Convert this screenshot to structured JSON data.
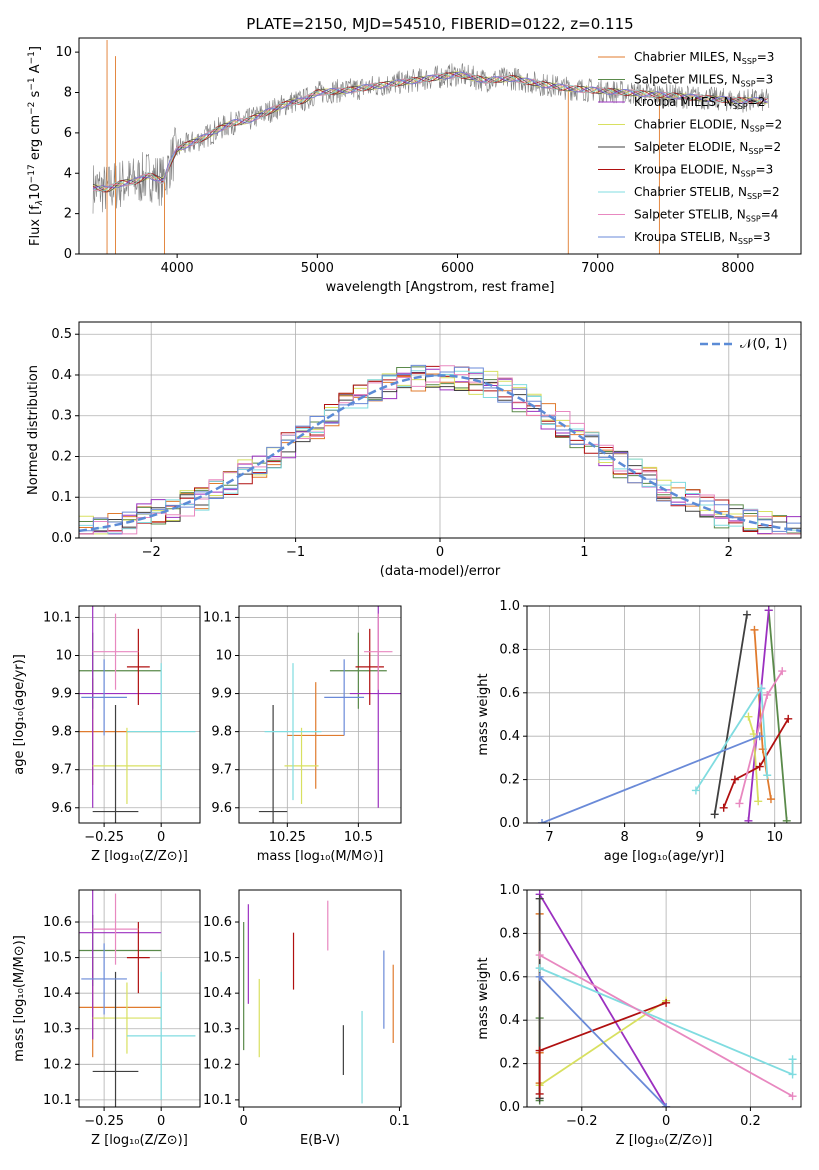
{
  "figure": {
    "title": "PLATE=2150, MJD=54510, FIBERID=0122, z=0.115"
  },
  "colors": {
    "axes": "#000000",
    "grid": "#b0b0b0",
    "spectrum_gray": "#7f7f7f",
    "normal_curve": "#5b8bd6",
    "fit_colors": [
      "#e07b2e",
      "#5a8a4a",
      "#9b30c0",
      "#d8e060",
      "#404040",
      "#b01010",
      "#80dce0",
      "#e888c0",
      "#6a8ad8"
    ]
  },
  "chart_data": [
    {
      "id": "spectrum",
      "type": "line",
      "title": "PLATE=2150, MJD=54510, FIBERID=0122, z=0.115",
      "xlabel": "wavelength [Angstrom, rest frame]",
      "ylabel": "Flux [f_λ 10^-17 erg cm^-2 s^-1 A^-1]",
      "xlim": [
        3300,
        8450
      ],
      "ylim": [
        0,
        10.7
      ],
      "xticks": [
        4000,
        5000,
        6000,
        7000,
        8000
      ],
      "yticks": [
        0,
        2,
        4,
        6,
        8,
        10
      ],
      "grid": false,
      "legend_position": "top-right",
      "continuum": {
        "x": [
          3400,
          3500,
          3600,
          3700,
          3800,
          3900,
          3950,
          4000,
          4100,
          4200,
          4300,
          4400,
          4500,
          4600,
          4700,
          4800,
          4900,
          5000,
          5200,
          5400,
          5600,
          5800,
          6000,
          6200,
          6400,
          6600,
          6800,
          7000,
          7200,
          7400,
          7600,
          7800,
          8000,
          8200
        ],
        "y": [
          3.3,
          3.2,
          3.5,
          3.6,
          3.9,
          3.6,
          4.5,
          5.2,
          5.5,
          5.8,
          6.2,
          6.5,
          6.6,
          6.9,
          7.2,
          7.5,
          7.6,
          8.0,
          8.1,
          8.3,
          8.5,
          8.7,
          8.9,
          8.6,
          8.7,
          8.4,
          8.2,
          8.1,
          8.0,
          7.9,
          7.8,
          7.7,
          7.6,
          7.6
        ]
      },
      "series": [
        {
          "name": "Chabrier MILES, N_SSP=3"
        },
        {
          "name": "Salpeter MILES, N_SSP=3"
        },
        {
          "name": "Kroupa MILES, N_SSP=2"
        },
        {
          "name": "Chabrier ELODIE, N_SSP=2"
        },
        {
          "name": "Salpeter ELODIE, N_SSP=2"
        },
        {
          "name": "Kroupa ELODIE, N_SSP=3"
        },
        {
          "name": "Chabrier STELIB, N_SSP=2"
        },
        {
          "name": "Salpeter STELIB, N_SSP=4"
        },
        {
          "name": "Kroupa STELIB, N_SSP=3"
        }
      ]
    },
    {
      "id": "residuals",
      "type": "line",
      "xlabel": "(data-model)/error",
      "ylabel": "Normed distribution",
      "xlim": [
        -2.5,
        2.5
      ],
      "ylim": [
        0,
        0.53
      ],
      "xticks": [
        -2,
        -1,
        0,
        1,
        2
      ],
      "yticks": [
        0.0,
        0.1,
        0.2,
        0.3,
        0.4,
        0.5
      ],
      "grid": true,
      "legend_position": "top-right",
      "normal_curve_label": "N(0,1)",
      "bin_width": 0.1
    },
    {
      "id": "Z-age",
      "type": "scatter",
      "xlabel": "Z [log10(Z/Z⊙)]",
      "ylabel": "age [log10(age/yr)]",
      "xlim": [
        -0.36,
        0.17
      ],
      "ylim": [
        9.56,
        10.13
      ],
      "xticks": [
        -0.25,
        0.0
      ],
      "yticks": [
        9.6,
        9.7,
        9.8,
        9.9,
        10.0,
        10.1
      ],
      "grid": true,
      "points": [
        {
          "x": -0.3,
          "y": 9.8,
          "xerr": 0.3,
          "yerr": 0.14,
          "c": 0
        },
        {
          "x": -0.3,
          "y": 9.96,
          "xerr": 0.3,
          "yerr": 0.1,
          "c": 1
        },
        {
          "x": -0.3,
          "y": 9.9,
          "xerr": 0.3,
          "yerr": 0.3,
          "c": 2
        },
        {
          "x": -0.15,
          "y": 9.71,
          "xerr": 0.15,
          "yerr": 0.1,
          "c": 3
        },
        {
          "x": -0.2,
          "y": 9.59,
          "xerr": 0.1,
          "yerr": 0.28,
          "c": 4
        },
        {
          "x": -0.1,
          "y": 9.97,
          "xerr": 0.05,
          "yerr": 0.1,
          "c": 5
        },
        {
          "x": 0.0,
          "y": 9.8,
          "xerr": 0.15,
          "yerr": 0.18,
          "c": 6
        },
        {
          "x": -0.2,
          "y": 10.01,
          "xerr": 0.1,
          "yerr": 0.1,
          "c": 7
        },
        {
          "x": -0.25,
          "y": 9.89,
          "xerr": 0.1,
          "yerr": 0.1,
          "c": 8
        }
      ]
    },
    {
      "id": "mass-age",
      "type": "scatter",
      "xlabel": "mass [log10(M/M⊙)]",
      "xlim": [
        10.08,
        10.65
      ],
      "ylim": [
        9.56,
        10.13
      ],
      "xticks": [
        10.25,
        10.5
      ],
      "yticks": [
        9.6,
        9.7,
        9.8,
        9.9,
        10.0,
        10.1
      ],
      "grid": true,
      "points": [
        {
          "x": 10.35,
          "y": 9.79,
          "xerr": 0.1,
          "yerr": 0.14,
          "c": 0
        },
        {
          "x": 10.5,
          "y": 9.96,
          "xerr": 0.1,
          "yerr": 0.1,
          "c": 1
        },
        {
          "x": 10.57,
          "y": 9.9,
          "xerr": 0.1,
          "yerr": 0.3,
          "c": 2
        },
        {
          "x": 10.3,
          "y": 9.71,
          "xerr": 0.06,
          "yerr": 0.1,
          "c": 3
        },
        {
          "x": 10.2,
          "y": 9.59,
          "xerr": 0.05,
          "yerr": 0.28,
          "c": 4
        },
        {
          "x": 10.54,
          "y": 9.97,
          "xerr": 0.05,
          "yerr": 0.1,
          "c": 5
        },
        {
          "x": 10.27,
          "y": 9.8,
          "xerr": 0.1,
          "yerr": 0.18,
          "c": 6
        },
        {
          "x": 10.57,
          "y": 10.01,
          "xerr": 0.05,
          "yerr": 0.1,
          "c": 7
        },
        {
          "x": 10.45,
          "y": 9.89,
          "xerr": 0.07,
          "yerr": 0.1,
          "c": 8
        }
      ]
    },
    {
      "id": "age-weight",
      "type": "line",
      "xlabel": "age [log10(age/yr)]",
      "ylabel": "mass weight",
      "xlim": [
        6.7,
        10.35
      ],
      "ylim": [
        0,
        1.0
      ],
      "xticks": [
        7,
        8,
        9,
        10
      ],
      "yticks": [
        0.0,
        0.2,
        0.4,
        0.6,
        0.8,
        1.0
      ],
      "grid": true,
      "series": [
        {
          "c": 0,
          "x": [
            9.73,
            9.84,
            9.95
          ],
          "y": [
            0.89,
            0.34,
            0.11
          ]
        },
        {
          "c": 1,
          "x": [
            9.92,
            10.16
          ],
          "y": [
            0.98,
            0.01
          ]
        },
        {
          "c": 2,
          "x": [
            9.65,
            9.82,
            9.92
          ],
          "y": [
            0.01,
            0.62,
            0.98
          ]
        },
        {
          "c": 3,
          "x": [
            9.65,
            9.72,
            9.78
          ],
          "y": [
            0.49,
            0.41,
            0.1
          ]
        },
        {
          "c": 4,
          "x": [
            9.2,
            9.63
          ],
          "y": [
            0.04,
            0.96
          ]
        },
        {
          "c": 5,
          "x": [
            9.32,
            9.47,
            9.8,
            10.18
          ],
          "y": [
            0.07,
            0.2,
            0.26,
            0.48
          ]
        },
        {
          "c": 6,
          "x": [
            8.95,
            9.82,
            9.9
          ],
          "y": [
            0.15,
            0.62,
            0.22
          ]
        },
        {
          "c": 7,
          "x": [
            9.53,
            9.9,
            10.1
          ],
          "y": [
            0.09,
            0.59,
            0.7
          ]
        },
        {
          "c": 8,
          "x": [
            6.9,
            9.8
          ],
          "y": [
            0.0,
            0.4
          ]
        }
      ]
    },
    {
      "id": "Z-mass",
      "type": "scatter",
      "xlabel": "Z [log10(Z/Z⊙)]",
      "ylabel": "mass [log10(M/M⊙)]",
      "xlim": [
        -0.36,
        0.17
      ],
      "ylim": [
        10.08,
        10.69
      ],
      "xticks": [
        -0.25,
        0.0
      ],
      "yticks": [
        10.1,
        10.2,
        10.3,
        10.4,
        10.5,
        10.6
      ],
      "grid": true,
      "points": [
        {
          "x": -0.3,
          "y": 10.36,
          "xerr": 0.3,
          "yerr": 0.14,
          "c": 0
        },
        {
          "x": -0.3,
          "y": 10.52,
          "xerr": 0.3,
          "yerr": 0.1,
          "c": 1
        },
        {
          "x": -0.3,
          "y": 10.57,
          "xerr": 0.3,
          "yerr": 0.3,
          "c": 2
        },
        {
          "x": -0.15,
          "y": 10.33,
          "xerr": 0.15,
          "yerr": 0.1,
          "c": 3
        },
        {
          "x": -0.2,
          "y": 10.18,
          "xerr": 0.1,
          "yerr": 0.28,
          "c": 4
        },
        {
          "x": -0.1,
          "y": 10.5,
          "xerr": 0.05,
          "yerr": 0.1,
          "c": 5
        },
        {
          "x": 0.0,
          "y": 10.28,
          "xerr": 0.15,
          "yerr": 0.18,
          "c": 6
        },
        {
          "x": -0.2,
          "y": 10.58,
          "xerr": 0.1,
          "yerr": 0.1,
          "c": 7
        },
        {
          "x": -0.25,
          "y": 10.44,
          "xerr": 0.1,
          "yerr": 0.1,
          "c": 8
        }
      ]
    },
    {
      "id": "EBV-mass",
      "type": "scatter",
      "xlabel": "E(B-V)",
      "xlim": [
        -0.003,
        0.101
      ],
      "ylim": [
        10.08,
        10.69
      ],
      "xticks": [
        0.0,
        0.1
      ],
      "yticks": [
        10.1,
        10.2,
        10.3,
        10.4,
        10.5,
        10.6
      ],
      "grid": false,
      "points": [
        {
          "x": 0.096,
          "y": 10.37,
          "yerr": 0.11,
          "c": 0
        },
        {
          "x": 0.0,
          "y": 10.42,
          "yerr": 0.18,
          "c": 1
        },
        {
          "x": 0.003,
          "y": 10.51,
          "yerr": 0.14,
          "c": 2
        },
        {
          "x": 0.01,
          "y": 10.33,
          "yerr": 0.11,
          "c": 3
        },
        {
          "x": 0.064,
          "y": 10.24,
          "yerr": 0.07,
          "c": 4
        },
        {
          "x": 0.032,
          "y": 10.49,
          "yerr": 0.08,
          "c": 5
        },
        {
          "x": 0.076,
          "y": 10.22,
          "yerr": 0.13,
          "c": 6
        },
        {
          "x": 0.054,
          "y": 10.59,
          "yerr": 0.07,
          "c": 7
        },
        {
          "x": 0.09,
          "y": 10.41,
          "yerr": 0.11,
          "c": 8
        }
      ]
    },
    {
      "id": "Z-weight",
      "type": "line",
      "xlabel": "Z [log10(Z/Z⊙)]",
      "ylabel": "mass weight",
      "xlim": [
        -0.33,
        0.32
      ],
      "ylim": [
        0,
        1.0
      ],
      "xticks": [
        -0.2,
        0.0,
        0.2
      ],
      "yticks": [
        0.0,
        0.2,
        0.4,
        0.6,
        0.8,
        1.0
      ],
      "grid": true,
      "series": [
        {
          "c": 0,
          "x": [
            -0.3,
            -0.3,
            -0.3
          ],
          "y": [
            0.89,
            0.25,
            0.11
          ]
        },
        {
          "c": 1,
          "x": [
            -0.3,
            -0.3
          ],
          "y": [
            0.41,
            0.03
          ]
        },
        {
          "c": 2,
          "x": [
            -0.3,
            0.0
          ],
          "y": [
            0.98,
            0.0
          ]
        },
        {
          "c": 3,
          "x": [
            -0.3,
            0.0
          ],
          "y": [
            0.1,
            0.49
          ]
        },
        {
          "c": 4,
          "x": [
            -0.3,
            -0.3
          ],
          "y": [
            0.96,
            0.04
          ]
        },
        {
          "c": 5,
          "x": [
            -0.3,
            -0.3,
            0.0
          ],
          "y": [
            0.06,
            0.26,
            0.48
          ]
        },
        {
          "c": 6,
          "x": [
            -0.3,
            0.3,
            0.3
          ],
          "y": [
            0.64,
            0.15,
            0.22
          ]
        },
        {
          "c": 7,
          "x": [
            -0.3,
            0.3
          ],
          "y": [
            0.7,
            0.05
          ]
        },
        {
          "c": 8,
          "x": [
            -0.3,
            0.0
          ],
          "y": [
            0.6,
            0.0
          ]
        }
      ]
    }
  ]
}
